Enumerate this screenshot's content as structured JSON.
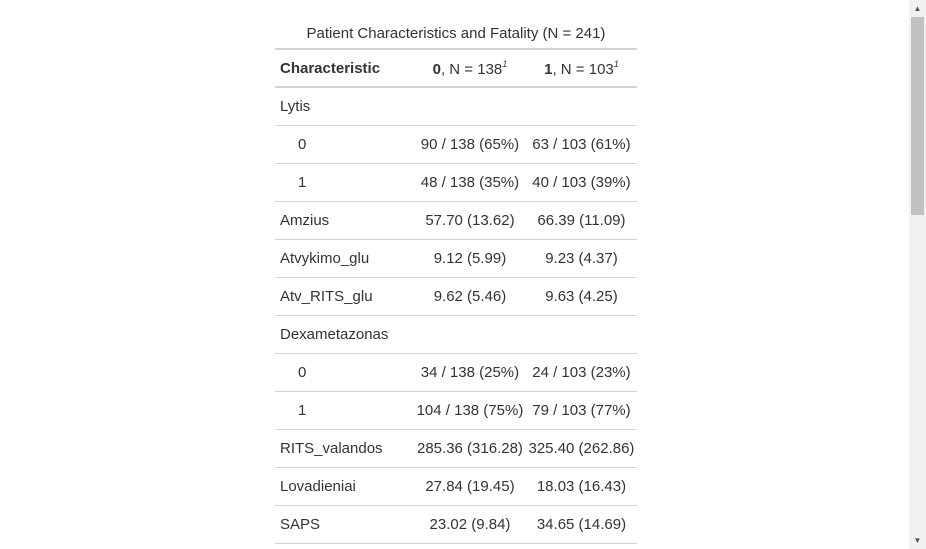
{
  "table": {
    "caption": "Patient Characteristics and Fatality (N = 241)",
    "header": {
      "characteristic": "Characteristic",
      "col0_group": "0",
      "col0_n": ", N = 138",
      "col1_group": "1",
      "col1_n": ", N = 103",
      "footnote_mark": "1"
    },
    "rows": [
      {
        "label": "Lytis",
        "v0": "",
        "v1": ""
      },
      {
        "label": "0",
        "v0": "90 / 138 (65%)",
        "v1": "63 / 103 (61%)"
      },
      {
        "label": "1",
        "v0": "48 / 138 (35%)",
        "v1": "40 / 103 (39%)"
      },
      {
        "label": "Amzius",
        "v0": "57.70 (13.62)",
        "v1": "66.39 (11.09)"
      },
      {
        "label": "Atvykimo_glu",
        "v0": "9.12 (5.99)",
        "v1": "9.23 (4.37)"
      },
      {
        "label": "Atv_RITS_glu",
        "v0": "9.62 (5.46)",
        "v1": "9.63 (4.25)"
      },
      {
        "label": "Dexametazonas",
        "v0": "",
        "v1": ""
      },
      {
        "label": "0",
        "v0": "34 / 138 (25%)",
        "v1": "24 / 103 (23%)"
      },
      {
        "label": "1",
        "v0": "104 / 138 (75%)",
        "v1": "79 / 103 (77%)"
      },
      {
        "label": "RITS_valandos",
        "v0": "285.36 (316.28)",
        "v1": "325.40 (262.86)"
      },
      {
        "label": "Lovadieniai",
        "v0": "27.84 (19.45)",
        "v1": "18.03 (16.43)"
      },
      {
        "label": "SAPS",
        "v0": "23.02 (9.84)",
        "v1": "34.65 (14.69)"
      }
    ]
  },
  "scrollbar": {
    "up_icon": "chevron-up-icon",
    "down_icon": "chevron-down-icon",
    "up_glyph": "▲",
    "down_glyph": "▼"
  }
}
